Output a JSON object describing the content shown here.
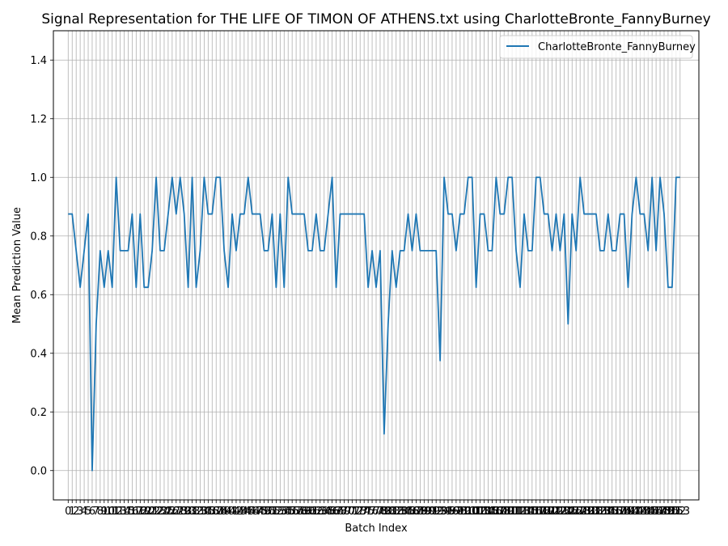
{
  "chart_data": {
    "type": "line",
    "title": "Signal Representation for THE LIFE OF TIMON OF ATHENS.txt using CharlotteBronte_FannyBurney",
    "xlabel": "Batch Index",
    "ylabel": "Mean Prediction Value",
    "xlim": [
      -3.7,
      157.7
    ],
    "ylim": [
      -0.1,
      1.5
    ],
    "yticks": [
      0.0,
      0.2,
      0.4,
      0.6,
      0.8,
      1.0,
      1.2,
      1.4
    ],
    "grid": true,
    "legend_position": "top-right",
    "series": [
      {
        "name": "CharlotteBronte_FannyBurney",
        "color": "#1f77b4",
        "values": [
          0.875,
          0.875,
          0.75,
          0.625,
          0.75,
          0.875,
          0.0,
          0.5,
          0.75,
          0.625,
          0.75,
          0.625,
          1.0,
          0.75,
          0.75,
          0.75,
          0.875,
          0.625,
          0.875,
          0.625,
          0.625,
          0.75,
          1.0,
          0.75,
          0.75,
          0.875,
          1.0,
          0.875,
          1.0,
          0.875,
          0.625,
          1.0,
          0.625,
          0.75,
          1.0,
          0.875,
          0.875,
          1.0,
          1.0,
          0.75,
          0.625,
          0.875,
          0.75,
          0.875,
          0.875,
          1.0,
          0.875,
          0.875,
          0.875,
          0.75,
          0.75,
          0.875,
          0.625,
          0.875,
          0.625,
          1.0,
          0.875,
          0.875,
          0.875,
          0.875,
          0.75,
          0.75,
          0.875,
          0.75,
          0.75,
          0.875,
          1.0,
          0.625,
          0.875,
          0.875,
          0.875,
          0.875,
          0.875,
          0.875,
          0.875,
          0.625,
          0.75,
          0.625,
          0.75,
          0.125,
          0.5,
          0.75,
          0.625,
          0.75,
          0.75,
          0.875,
          0.75,
          0.875,
          0.75,
          0.75,
          0.75,
          0.75,
          0.75,
          0.375,
          1.0,
          0.875,
          0.875,
          0.75,
          0.875,
          0.875,
          1.0,
          1.0,
          0.625,
          0.875,
          0.875,
          0.75,
          0.75,
          1.0,
          0.875,
          0.875,
          1.0,
          1.0,
          0.75,
          0.625,
          0.875,
          0.75,
          0.75,
          1.0,
          1.0,
          0.875,
          0.875,
          0.75,
          0.875,
          0.75,
          0.875,
          0.5,
          0.875,
          0.75,
          1.0,
          0.875,
          0.875,
          0.875,
          0.875,
          0.75,
          0.75,
          0.875,
          0.75,
          0.75,
          0.875,
          0.875,
          0.625,
          0.875,
          1.0,
          0.875,
          0.875,
          0.75,
          1.0,
          0.75,
          1.0,
          0.875,
          0.625,
          0.625,
          1.0,
          1.0
        ]
      }
    ]
  }
}
